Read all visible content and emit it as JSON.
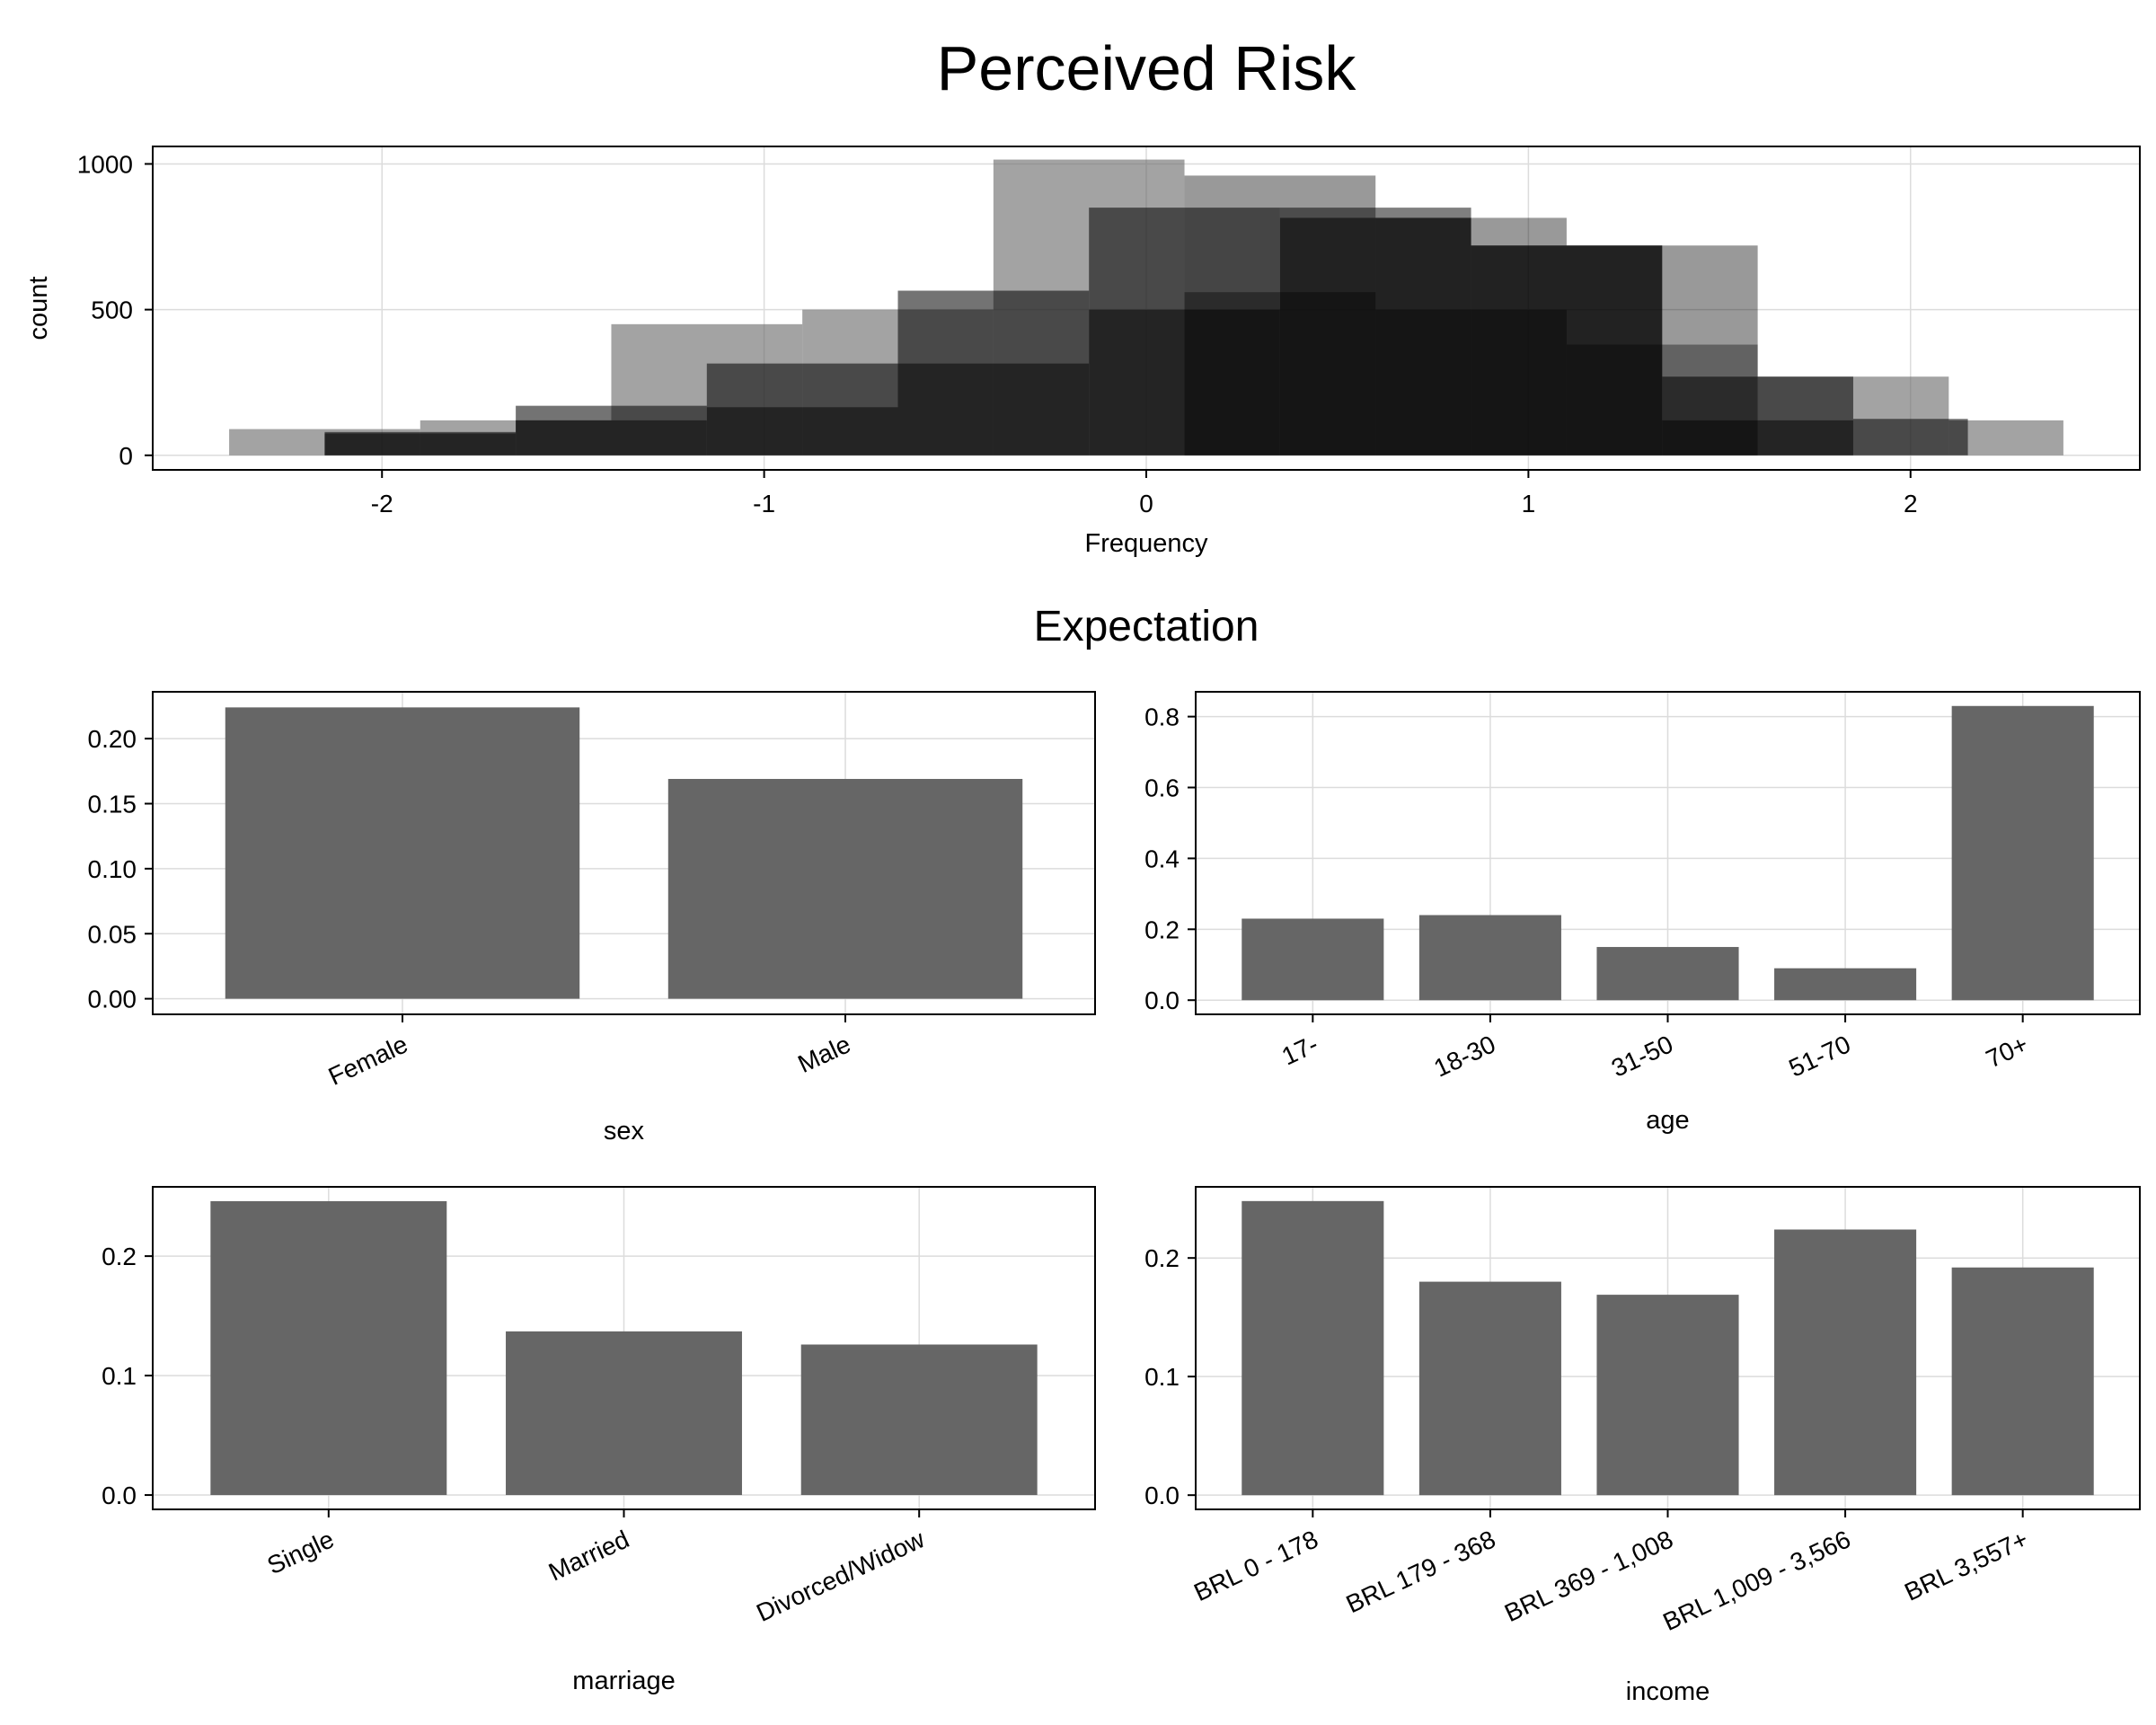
{
  "titles": {
    "main": "Perceived Risk",
    "section": "Expectation"
  },
  "colors": {
    "bar": "#666666",
    "overlay_bar": "#000000",
    "grid": "#dcdcdc"
  },
  "chart_data": [
    {
      "type": "bar",
      "subtype": "overlaid histograms",
      "title": "Perceived Risk",
      "xlabel": "Frequency",
      "ylabel": "count",
      "xlim": [
        -2.6,
        2.6
      ],
      "ylim": [
        -50,
        1060
      ],
      "xticks": [
        -2,
        -1,
        0,
        1,
        2
      ],
      "xtick_labels": [
        "-2",
        "-1",
        "0",
        "1",
        "2"
      ],
      "yticks": [
        0,
        500,
        1000
      ],
      "ytick_labels": [
        "0",
        "500",
        "1000"
      ],
      "grid": true,
      "series": [
        {
          "bins": [
            [
              -2.4,
              -1.9,
              90
            ],
            [
              -1.9,
              -1.4,
              120
            ],
            [
              -1.4,
              -0.9,
              450
            ],
            [
              -0.9,
              -0.4,
              500
            ],
            [
              -0.4,
              0.1,
              1015
            ],
            [
              0.1,
              0.6,
              560
            ],
            [
              0.6,
              1.1,
              500
            ],
            [
              1.1,
              1.6,
              380
            ],
            [
              1.6,
              2.1,
              270
            ],
            [
              2.1,
              2.4,
              120
            ]
          ],
          "opacity": 0.6
        },
        {
          "bins": [
            [
              -2.15,
              -1.65,
              80
            ],
            [
              -1.65,
              -1.15,
              170
            ],
            [
              -1.15,
              -0.65,
              315
            ],
            [
              -0.65,
              -0.15,
              565
            ],
            [
              -0.15,
              0.35,
              850
            ],
            [
              0.35,
              0.85,
              815
            ],
            [
              0.85,
              1.35,
              720
            ],
            [
              1.35,
              1.85,
              270
            ],
            [
              1.85,
              2.15,
              125
            ]
          ],
          "opacity": 0.55
        },
        {
          "bins": [
            [
              -2.15,
              -1.65,
              75
            ],
            [
              -1.65,
              -1.15,
              120
            ],
            [
              -1.15,
              -0.65,
              165
            ],
            [
              -0.65,
              -0.15,
              315
            ],
            [
              -0.15,
              0.35,
              500
            ],
            [
              0.35,
              0.85,
              850
            ],
            [
              0.85,
              1.35,
              720
            ],
            [
              1.35,
              1.85,
              120
            ]
          ],
          "opacity": 0.5
        },
        {
          "bins": [
            [
              0.1,
              0.6,
              960
            ],
            [
              0.6,
              1.1,
              815
            ],
            [
              1.1,
              1.6,
              720
            ]
          ],
          "opacity": 0.4
        }
      ]
    },
    {
      "type": "bar",
      "title": "",
      "xlabel": "sex",
      "ylabel": "",
      "categories": [
        "Female",
        "Male"
      ],
      "values": [
        0.224,
        0.169
      ],
      "ylim": [
        -0.012,
        0.236
      ],
      "yticks": [
        0.0,
        0.05,
        0.1,
        0.15,
        0.2
      ],
      "ytick_labels": [
        "0.00",
        "0.05",
        "0.10",
        "0.15",
        "0.20"
      ],
      "grid": true
    },
    {
      "type": "bar",
      "title": "",
      "xlabel": "age",
      "ylabel": "",
      "categories": [
        "17-",
        "18-30",
        "31-50",
        "51-70",
        "70+"
      ],
      "values": [
        0.23,
        0.24,
        0.15,
        0.09,
        0.83
      ],
      "ylim": [
        -0.04,
        0.87
      ],
      "yticks": [
        0.0,
        0.2,
        0.4,
        0.6,
        0.8
      ],
      "ytick_labels": [
        "0.0",
        "0.2",
        "0.4",
        "0.6",
        "0.8"
      ],
      "grid": true
    },
    {
      "type": "bar",
      "title": "",
      "xlabel": "marriage",
      "ylabel": "",
      "categories": [
        "Single",
        "Married",
        "Divorced/Widow"
      ],
      "values": [
        0.246,
        0.137,
        0.126
      ],
      "ylim": [
        -0.012,
        0.258
      ],
      "yticks": [
        0.0,
        0.1,
        0.2
      ],
      "ytick_labels": [
        "0.0",
        "0.1",
        "0.2"
      ],
      "grid": true
    },
    {
      "type": "bar",
      "title": "",
      "xlabel": "income",
      "ylabel": "",
      "categories": [
        "BRL 0 - 178",
        "BRL 179 - 368",
        "BRL 369 - 1,008",
        "BRL 1,009 - 3,566",
        "BRL 3,557+"
      ],
      "values": [
        0.248,
        0.18,
        0.169,
        0.224,
        0.192
      ],
      "ylim": [
        -0.012,
        0.26
      ],
      "yticks": [
        0.0,
        0.1,
        0.2
      ],
      "ytick_labels": [
        "0.0",
        "0.1",
        "0.2"
      ],
      "grid": true
    }
  ]
}
